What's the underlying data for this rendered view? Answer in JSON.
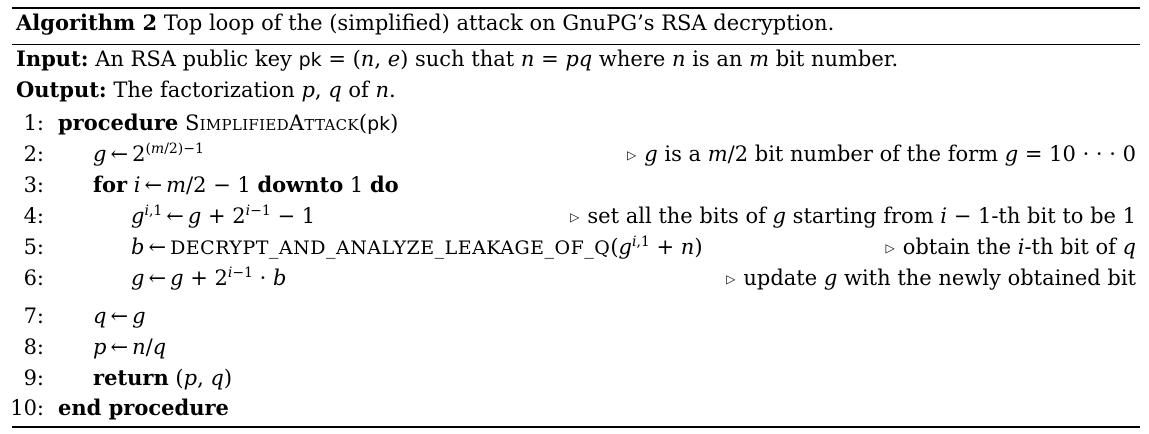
{
  "algorithm": {
    "label": "Algorithm 2",
    "caption": "Top loop of the (simplified) attack on GnuPG’s RSA decryption.",
    "input_label": "Input:",
    "input_text": "An RSA public key pk = (n, e) such that n = pq where n is an m bit number.",
    "output_label": "Output:",
    "output_text": "The factorization p, q of n.",
    "lines": [
      {
        "num": "1:",
        "keyword": "procedure",
        "name": "SimplifiedAttack",
        "arg": "(pk)"
      },
      {
        "num": "2:",
        "code": "g ← 2^((m/2)−1)",
        "comment": "g is a m/2 bit number of the form g = 10···0"
      },
      {
        "num": "3:",
        "code": "for i ← m/2 − 1 downto 1 do"
      },
      {
        "num": "4:",
        "code": "g^{i,1} ← g + 2^{i−1} − 1",
        "comment": "set all the bits of g starting from i − 1-th bit to be 1"
      },
      {
        "num": "5:",
        "code": "b ← DECRYPT_AND_ANALYZE_LEAKAGE_OF_Q(g^{i,1} + n)",
        "comment": "obtain the i-th bit of q"
      },
      {
        "num": "6:",
        "code": "g ← g + 2^{i−1} · b",
        "comment": "update g with the newly obtained bit"
      },
      {
        "num": "7:",
        "code": "q ← g"
      },
      {
        "num": "8:",
        "code": "p ← n/q"
      },
      {
        "num": "9:",
        "code": "return (p, q)"
      },
      {
        "num": "10:",
        "code": "end procedure"
      }
    ]
  }
}
